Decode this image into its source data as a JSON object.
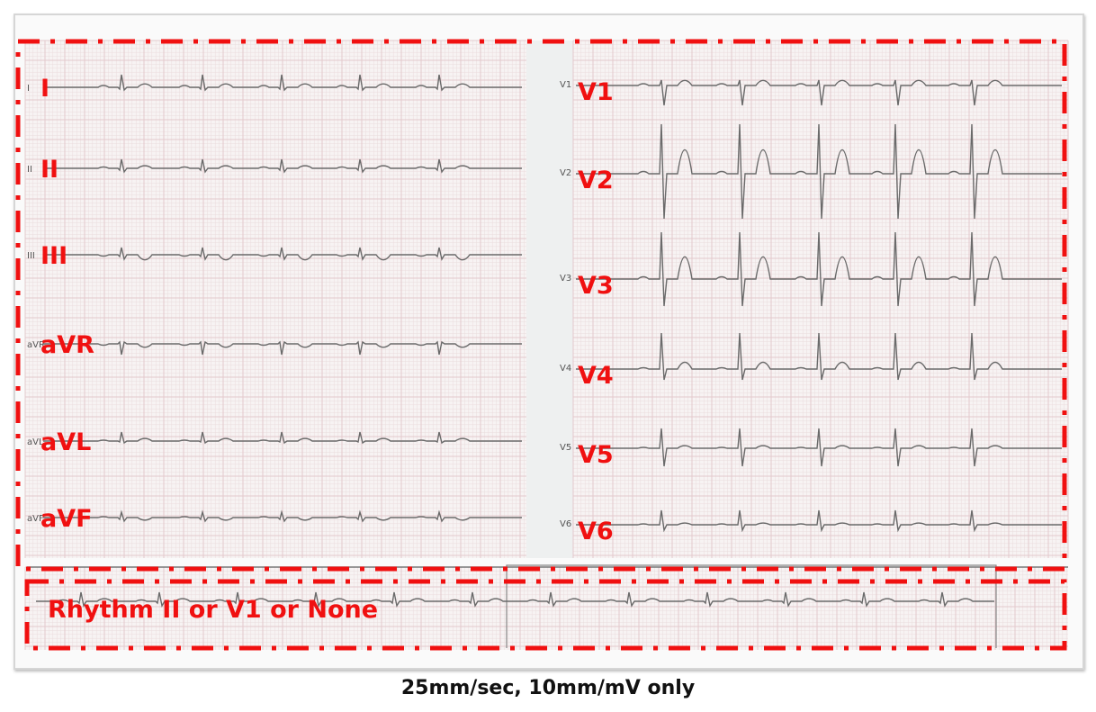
{
  "limb_leads": [
    {
      "label": "I"
    },
    {
      "label": "II"
    },
    {
      "label": "III"
    },
    {
      "label": "aVR"
    },
    {
      "label": "aVL"
    },
    {
      "label": "aVF"
    }
  ],
  "chest_leads": [
    {
      "label": "V1"
    },
    {
      "label": "V2"
    },
    {
      "label": "V3"
    },
    {
      "label": "V4"
    },
    {
      "label": "V5"
    },
    {
      "label": "V6"
    }
  ],
  "rhythm_label": "Rhythm II or V1 or None",
  "caption": "25mm/sec, 10mm/mV only",
  "colors": {
    "annotation": "#f01010",
    "grid": "#e3c9cc",
    "trace": "#6a6a6a"
  }
}
